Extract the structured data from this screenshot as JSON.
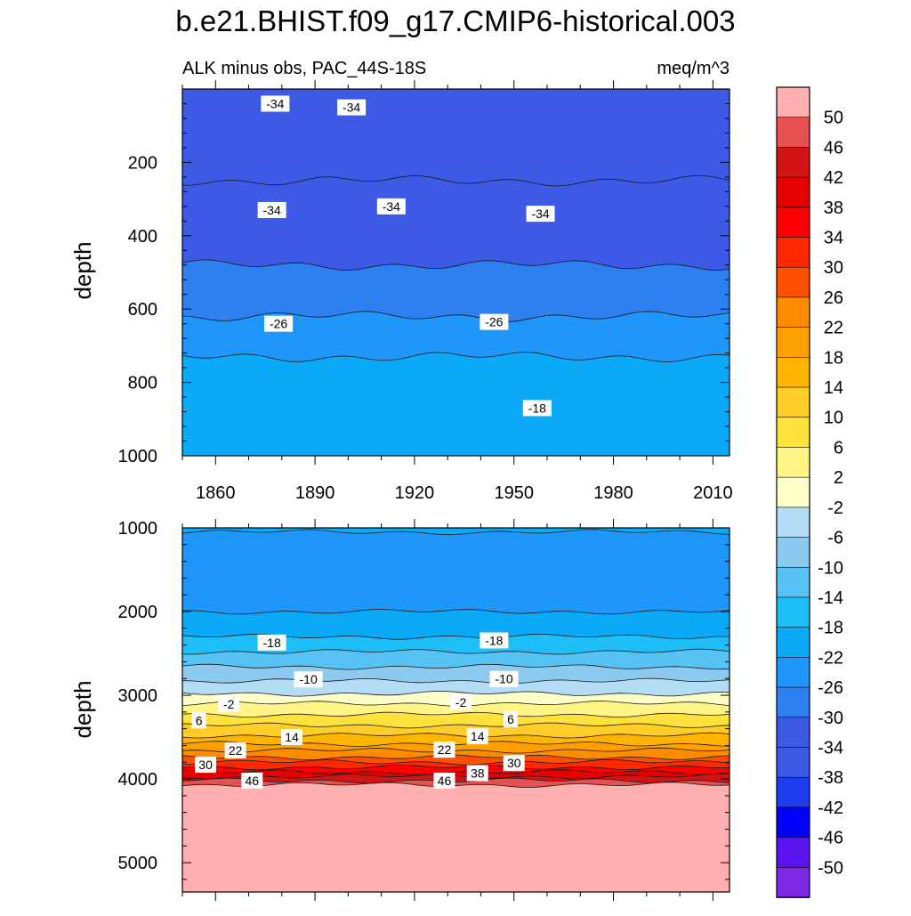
{
  "title": "b.e21.BHIST.f09_g17.CMIP6-historical.003",
  "chart_data": [
    {
      "type": "contour",
      "panel": "upper",
      "subtitle_left": "ALK minus obs, PAC_44S-18S",
      "subtitle_right": "meq/m^3",
      "ylabel": "depth",
      "xlim": [
        1850,
        2015
      ],
      "ylim": [
        0,
        1000
      ],
      "y_inverted": true,
      "x_ticks": [
        "1860",
        "1890",
        "1920",
        "1950",
        "1980",
        "2010"
      ],
      "x_tick_values": [
        1860,
        1890,
        1920,
        1950,
        1980,
        2010
      ],
      "y_ticks": [
        "200",
        "400",
        "600",
        "800",
        "1000"
      ],
      "y_tick_values": [
        200,
        400,
        600,
        800,
        1000
      ],
      "bands": [
        {
          "level": -38,
          "top": 0,
          "bottom": 250,
          "color": "#3c5ae6"
        },
        {
          "level": -34,
          "top": 250,
          "bottom": 480,
          "color": "#3c5ae6"
        },
        {
          "level": -30,
          "top": 480,
          "bottom": 620,
          "color": "#2e7ff0"
        },
        {
          "level": -26,
          "top": 620,
          "bottom": 730,
          "color": "#1e96fa"
        },
        {
          "level": -22,
          "top": 730,
          "bottom": 1000,
          "color": "#0aaaf8"
        }
      ],
      "contour_labels": [
        {
          "text": "-34",
          "x": 1878,
          "y": 40
        },
        {
          "text": "-34",
          "x": 1901,
          "y": 50
        },
        {
          "text": "-34",
          "x": 1877,
          "y": 330
        },
        {
          "text": "-34",
          "x": 1913,
          "y": 320
        },
        {
          "text": "-34",
          "x": 1958,
          "y": 340
        },
        {
          "text": "-26",
          "x": 1879,
          "y": 640
        },
        {
          "text": "-26",
          "x": 1944,
          "y": 635
        },
        {
          "text": "-18",
          "x": 1957,
          "y": 870
        }
      ]
    },
    {
      "type": "contour",
      "panel": "lower",
      "ylabel": "depth",
      "xlim": [
        1850,
        2015
      ],
      "ylim": [
        1000,
        5350
      ],
      "y_inverted": true,
      "y_ticks": [
        "1000",
        "2000",
        "3000",
        "4000",
        "5000"
      ],
      "y_tick_values": [
        1000,
        2000,
        3000,
        4000,
        5000
      ],
      "bands": [
        {
          "level": -22,
          "top": 1000,
          "bottom": 1050,
          "color": "#0aaaf8"
        },
        {
          "level": -26,
          "top": 1050,
          "bottom": 2000,
          "color": "#1e96fa"
        },
        {
          "level": -22,
          "top": 2000,
          "bottom": 2300,
          "color": "#0aaaf8"
        },
        {
          "level": -18,
          "top": 2300,
          "bottom": 2480,
          "color": "#1ebef8"
        },
        {
          "level": -14,
          "top": 2480,
          "bottom": 2660,
          "color": "#56c3f4"
        },
        {
          "level": -10,
          "top": 2660,
          "bottom": 2830,
          "color": "#8ccbef"
        },
        {
          "level": -6,
          "top": 2830,
          "bottom": 2980,
          "color": "#b4dcf5"
        },
        {
          "level": -2,
          "top": 2980,
          "bottom": 3100,
          "color": "#ffffc8"
        },
        {
          "level": 2,
          "top": 3100,
          "bottom": 3230,
          "color": "#fff587"
        },
        {
          "level": 6,
          "top": 3230,
          "bottom": 3360,
          "color": "#ffe13c"
        },
        {
          "level": 10,
          "top": 3360,
          "bottom": 3480,
          "color": "#ffcd28"
        },
        {
          "level": 14,
          "top": 3480,
          "bottom": 3580,
          "color": "#ffb400"
        },
        {
          "level": 18,
          "top": 3580,
          "bottom": 3660,
          "color": "#ffa000"
        },
        {
          "level": 22,
          "top": 3660,
          "bottom": 3740,
          "color": "#ff8c00"
        },
        {
          "level": 26,
          "top": 3740,
          "bottom": 3800,
          "color": "#ff5000"
        },
        {
          "level": 30,
          "top": 3800,
          "bottom": 3860,
          "color": "#ff2800"
        },
        {
          "level": 34,
          "top": 3860,
          "bottom": 3920,
          "color": "#ff0000"
        },
        {
          "level": 38,
          "top": 3920,
          "bottom": 3970,
          "color": "#e60000"
        },
        {
          "level": 42,
          "top": 3970,
          "bottom": 4020,
          "color": "#d21414"
        },
        {
          "level": 46,
          "top": 4020,
          "bottom": 4070,
          "color": "#e65050"
        },
        {
          "level": 50,
          "top": 4070,
          "bottom": 5350,
          "color": "#ffafaf"
        }
      ],
      "contour_labels": [
        {
          "text": "-18",
          "x": 1877,
          "y": 2370
        },
        {
          "text": "-18",
          "x": 1944,
          "y": 2345
        },
        {
          "text": "-10",
          "x": 1888,
          "y": 2810
        },
        {
          "text": "-10",
          "x": 1947,
          "y": 2805
        },
        {
          "text": "-2",
          "x": 1864,
          "y": 3105
        },
        {
          "text": "-2",
          "x": 1934,
          "y": 3085
        },
        {
          "text": "6",
          "x": 1855,
          "y": 3300
        },
        {
          "text": "6",
          "x": 1949,
          "y": 3285
        },
        {
          "text": "14",
          "x": 1883,
          "y": 3500
        },
        {
          "text": "14",
          "x": 1939,
          "y": 3490
        },
        {
          "text": "22",
          "x": 1866,
          "y": 3660
        },
        {
          "text": "22",
          "x": 1929,
          "y": 3650
        },
        {
          "text": "30",
          "x": 1857,
          "y": 3830
        },
        {
          "text": "30",
          "x": 1950,
          "y": 3810
        },
        {
          "text": "38",
          "x": 1939,
          "y": 3930
        },
        {
          "text": "46",
          "x": 1871,
          "y": 4020
        },
        {
          "text": "46",
          "x": 1929,
          "y": 4020
        }
      ]
    }
  ],
  "colorbar": {
    "labels": [
      "50",
      "46",
      "42",
      "38",
      "34",
      "30",
      "26",
      "22",
      "18",
      "14",
      "10",
      "6",
      "2",
      "-2",
      "-6",
      "-10",
      "-14",
      "-18",
      "-22",
      "-26",
      "-30",
      "-34",
      "-38",
      "-42",
      "-46",
      "-50"
    ],
    "colors": [
      "#ffafaf",
      "#e65050",
      "#d21414",
      "#e60000",
      "#ff0000",
      "#ff2800",
      "#ff5000",
      "#ff8c00",
      "#ffa000",
      "#ffb400",
      "#ffcd28",
      "#ffe13c",
      "#fff587",
      "#ffffc8",
      "#b4dcf5",
      "#8ccbef",
      "#56c3f4",
      "#1ebef8",
      "#0aaaf8",
      "#1e96fa",
      "#2e7ff0",
      "#3c5ae6",
      "#3c5ae6",
      "#1e3cf0",
      "#0000ff",
      "#5a14f0",
      "#7d28e6"
    ]
  }
}
